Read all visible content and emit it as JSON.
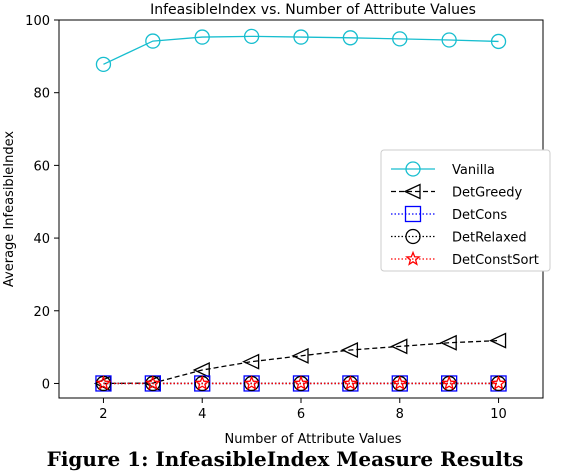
{
  "chart_data": {
    "type": "line",
    "title": "InfeasibleIndex vs. Number of Attribute Values",
    "xlabel": "Number of Attribute Values",
    "ylabel": "Average InfeasibleIndex",
    "xlim": [
      1.1,
      10.9
    ],
    "ylim": [
      -4,
      100
    ],
    "xticks": [
      2,
      4,
      6,
      8,
      10
    ],
    "yticks": [
      0,
      20,
      40,
      60,
      80,
      100
    ],
    "grid": false,
    "legend_position": "center-right",
    "x": [
      2,
      3,
      4,
      5,
      6,
      7,
      8,
      9,
      10
    ],
    "series": [
      {
        "name": "Vanilla",
        "values": [
          87.8,
          94.2,
          95.3,
          95.5,
          95.3,
          95.1,
          94.8,
          94.5,
          94.1
        ],
        "color": "#17becf",
        "linestyle": "solid",
        "marker": "circle"
      },
      {
        "name": "DetGreedy",
        "values": [
          0.0,
          0.1,
          3.7,
          6.0,
          7.6,
          9.2,
          10.2,
          11.2,
          11.8
        ],
        "color": "#000000",
        "linestyle": "dashed",
        "marker": "triangle-left"
      },
      {
        "name": "DetCons",
        "values": [
          0,
          0,
          0,
          0,
          0,
          0,
          0,
          0,
          0
        ],
        "color": "#0000ff",
        "linestyle": "dotted",
        "marker": "square"
      },
      {
        "name": "DetRelaxed",
        "values": [
          0,
          0,
          0,
          0,
          0,
          0,
          0,
          0,
          0
        ],
        "color": "#000000",
        "linestyle": "dotted",
        "marker": "circle"
      },
      {
        "name": "DetConstSort",
        "values": [
          0,
          0,
          0,
          0,
          0,
          0,
          0,
          0,
          0
        ],
        "color": "#ff0000",
        "linestyle": "dotted",
        "marker": "star"
      }
    ]
  },
  "caption": "Figure 1: InfeasibleIndex Measure Results"
}
